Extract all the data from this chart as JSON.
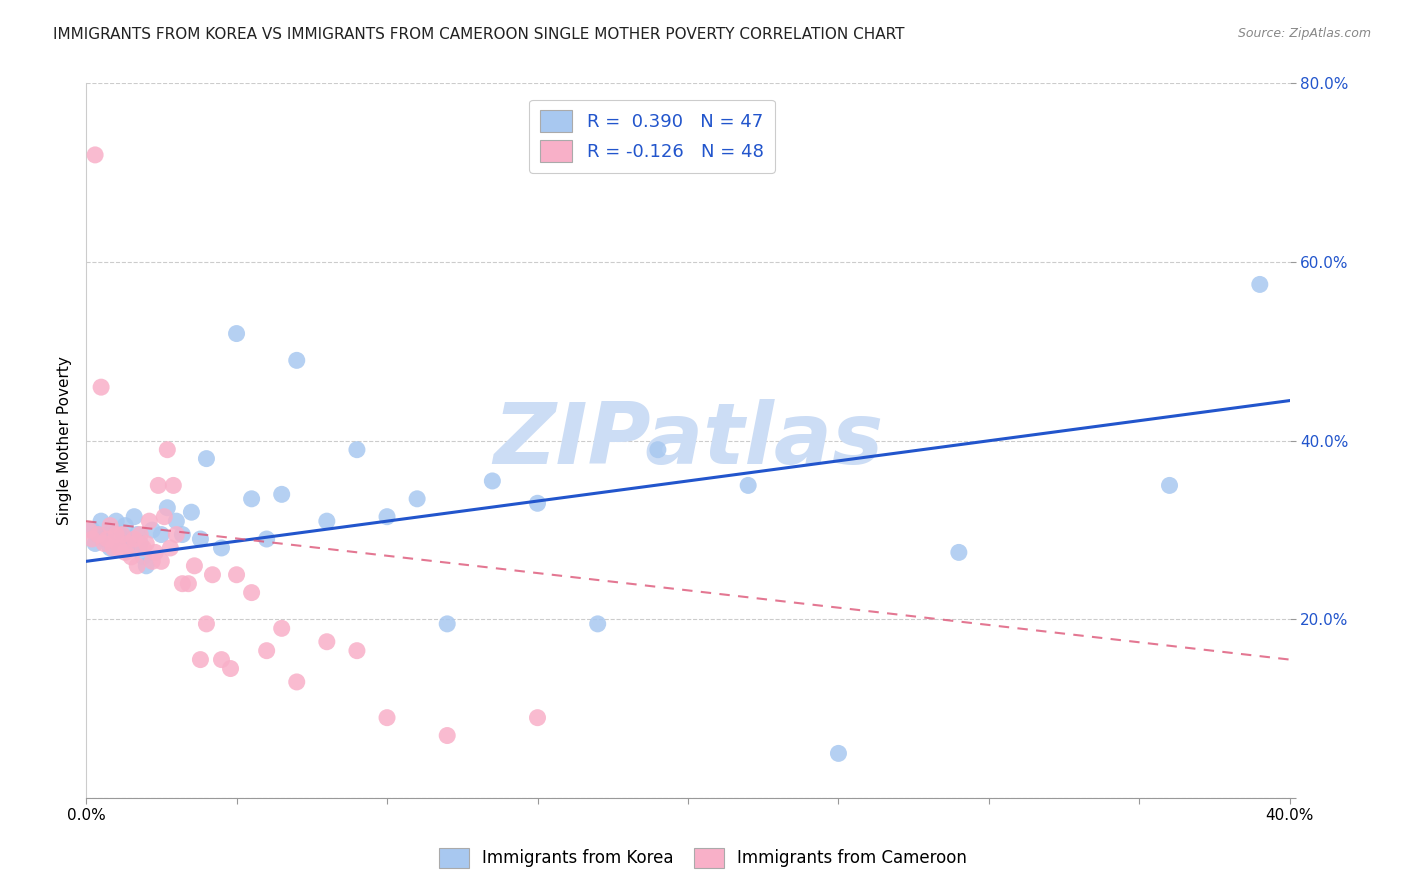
{
  "title": "IMMIGRANTS FROM KOREA VS IMMIGRANTS FROM CAMEROON SINGLE MOTHER POVERTY CORRELATION CHART",
  "source": "Source: ZipAtlas.com",
  "ylabel_left": "Single Mother Poverty",
  "xlim": [
    0.0,
    0.4
  ],
  "ylim": [
    0.0,
    0.8
  ],
  "legend_label_korea": "Immigrants from Korea",
  "legend_label_cameroon": "Immigrants from Cameroon",
  "korea_color": "#a8c8f0",
  "cameroon_color": "#f8b0c8",
  "korea_line_color": "#2255cc",
  "cameroon_line_color": "#dd5577",
  "watermark": "ZIPatlas",
  "watermark_color": "#ccddf5",
  "background_color": "#ffffff",
  "grid_color": "#cccccc",
  "title_fontsize": 11,
  "korea_scatter_x": [
    0.002,
    0.003,
    0.004,
    0.005,
    0.006,
    0.007,
    0.008,
    0.009,
    0.01,
    0.011,
    0.012,
    0.013,
    0.014,
    0.015,
    0.016,
    0.017,
    0.018,
    0.019,
    0.02,
    0.022,
    0.025,
    0.027,
    0.03,
    0.032,
    0.035,
    0.038,
    0.04,
    0.045,
    0.05,
    0.055,
    0.06,
    0.065,
    0.07,
    0.08,
    0.09,
    0.1,
    0.11,
    0.12,
    0.135,
    0.15,
    0.17,
    0.19,
    0.22,
    0.25,
    0.29,
    0.36,
    0.39
  ],
  "korea_scatter_y": [
    0.3,
    0.285,
    0.295,
    0.31,
    0.29,
    0.295,
    0.28,
    0.3,
    0.31,
    0.295,
    0.285,
    0.305,
    0.29,
    0.28,
    0.315,
    0.295,
    0.285,
    0.27,
    0.26,
    0.3,
    0.295,
    0.325,
    0.31,
    0.295,
    0.32,
    0.29,
    0.38,
    0.28,
    0.52,
    0.335,
    0.29,
    0.34,
    0.49,
    0.31,
    0.39,
    0.315,
    0.335,
    0.195,
    0.355,
    0.33,
    0.195,
    0.39,
    0.35,
    0.05,
    0.275,
    0.35,
    0.575
  ],
  "cameroon_scatter_x": [
    0.001,
    0.002,
    0.003,
    0.004,
    0.005,
    0.006,
    0.007,
    0.008,
    0.009,
    0.01,
    0.011,
    0.012,
    0.013,
    0.014,
    0.015,
    0.016,
    0.017,
    0.018,
    0.019,
    0.02,
    0.021,
    0.022,
    0.023,
    0.024,
    0.025,
    0.026,
    0.027,
    0.028,
    0.029,
    0.03,
    0.032,
    0.034,
    0.036,
    0.038,
    0.04,
    0.042,
    0.045,
    0.048,
    0.05,
    0.055,
    0.06,
    0.065,
    0.07,
    0.08,
    0.09,
    0.1,
    0.12,
    0.15
  ],
  "cameroon_scatter_y": [
    0.3,
    0.29,
    0.72,
    0.295,
    0.46,
    0.285,
    0.29,
    0.305,
    0.28,
    0.295,
    0.28,
    0.295,
    0.275,
    0.285,
    0.27,
    0.29,
    0.26,
    0.295,
    0.28,
    0.285,
    0.31,
    0.265,
    0.275,
    0.35,
    0.265,
    0.315,
    0.39,
    0.28,
    0.35,
    0.295,
    0.24,
    0.24,
    0.26,
    0.155,
    0.195,
    0.25,
    0.155,
    0.145,
    0.25,
    0.23,
    0.165,
    0.19,
    0.13,
    0.175,
    0.165,
    0.09,
    0.07,
    0.09
  ],
  "korea_trend_x": [
    0.0,
    0.4
  ],
  "korea_trend_y": [
    0.265,
    0.445
  ],
  "cameroon_trend_x": [
    0.0,
    0.4
  ],
  "cameroon_trend_y": [
    0.31,
    0.155
  ]
}
